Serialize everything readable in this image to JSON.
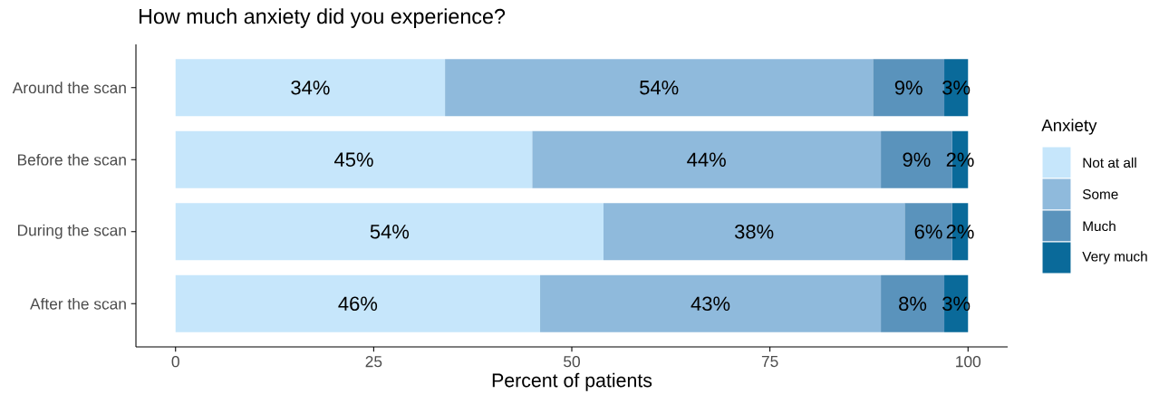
{
  "chart_data": {
    "type": "bar",
    "orientation": "horizontal",
    "stacked": true,
    "title": "How much anxiety did you experience?",
    "xlabel": "Percent of patients",
    "legend_title": "Anxiety",
    "legend": "right",
    "grid": false,
    "categories": [
      "Around the scan",
      "Before the scan",
      "During the scan",
      "After the scan"
    ],
    "xlim": [
      -5,
      105
    ],
    "xticks": [
      0,
      25,
      50,
      75,
      100
    ],
    "series": [
      {
        "name": "Not at all",
        "color": "#c6e6fb",
        "values": [
          34,
          45,
          54,
          46
        ],
        "value_labels": [
          "34%",
          "45%",
          "54%",
          "46%"
        ]
      },
      {
        "name": "Some",
        "color": "#8fbadc",
        "values": [
          54,
          44,
          38,
          43
        ],
        "value_labels": [
          "54%",
          "44%",
          "38%",
          "43%"
        ]
      },
      {
        "name": "Much",
        "color": "#5a93bc",
        "values": [
          9,
          9,
          6,
          8
        ],
        "value_labels": [
          "9%",
          "9%",
          "6%",
          "8%"
        ]
      },
      {
        "name": "Very much",
        "color": "#0a6a9a",
        "values": [
          3,
          2,
          2,
          3
        ],
        "value_labels": [
          "3%",
          "2%",
          "2%",
          "3%"
        ]
      }
    ]
  }
}
